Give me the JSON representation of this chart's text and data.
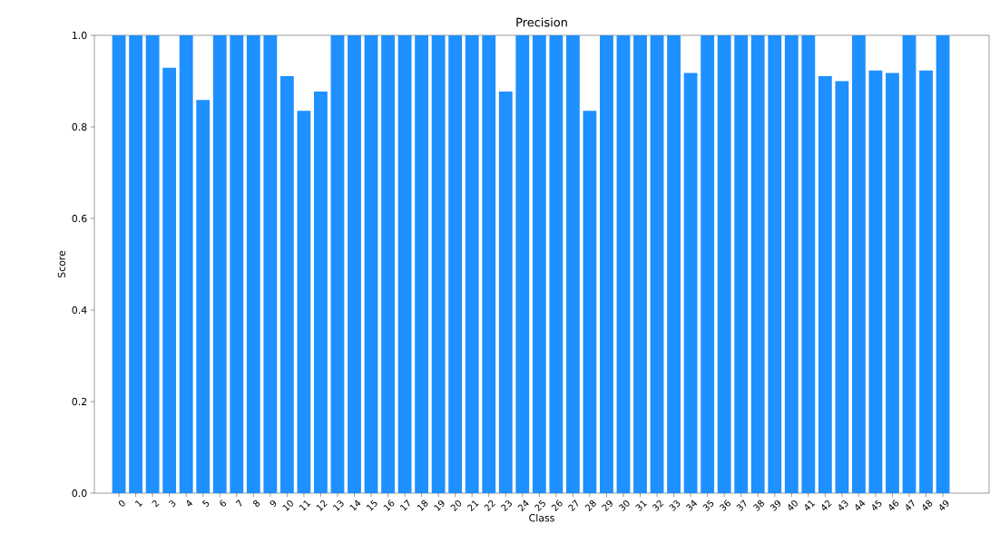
{
  "chart_data": {
    "type": "bar",
    "title": "Precision",
    "xlabel": "Class",
    "ylabel": "Score",
    "categories": [
      "0",
      "1",
      "2",
      "3",
      "4",
      "5",
      "6",
      "7",
      "8",
      "9",
      "10",
      "11",
      "12",
      "13",
      "14",
      "15",
      "16",
      "17",
      "18",
      "19",
      "20",
      "21",
      "22",
      "23",
      "24",
      "25",
      "26",
      "27",
      "28",
      "29",
      "30",
      "31",
      "32",
      "33",
      "34",
      "35",
      "36",
      "37",
      "38",
      "39",
      "40",
      "41",
      "42",
      "43",
      "44",
      "45",
      "46",
      "47",
      "48",
      "49"
    ],
    "values": [
      1,
      1,
      1,
      0.929,
      1,
      0.859,
      1,
      1,
      1,
      1,
      0.911,
      0.835,
      0.877,
      1,
      1,
      1,
      1,
      1,
      1,
      1,
      1,
      1,
      1,
      0.877,
      1,
      1,
      1,
      1,
      0.835,
      1,
      1,
      1,
      1,
      1,
      0.918,
      1,
      1,
      1,
      1,
      1,
      1,
      1,
      0.911,
      0.9,
      1,
      0.923,
      0.918,
      1,
      0.923,
      1
    ],
    "color": "#1e90ff",
    "ylim": [
      0,
      1
    ],
    "yticks": [
      {
        "value": 0,
        "label": "0.0"
      },
      {
        "value": 0.2,
        "label": "0.2"
      },
      {
        "value": 0.4,
        "label": "0.4"
      },
      {
        "value": 0.6,
        "label": "0.6"
      },
      {
        "value": 0.8,
        "label": "0.8"
      },
      {
        "value": 1,
        "label": "1.0"
      }
    ],
    "grid": false
  }
}
